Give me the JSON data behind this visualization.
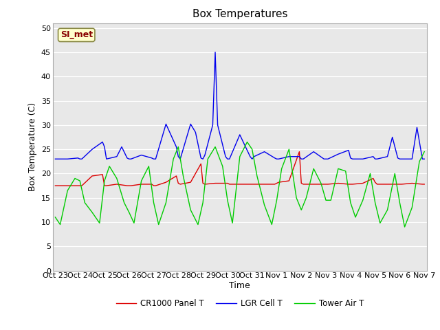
{
  "title": "Box Temperatures",
  "ylabel": "Box Temperature (C)",
  "xlabel": "Time",
  "ylim": [
    0,
    51
  ],
  "yticks": [
    0,
    5,
    10,
    15,
    20,
    25,
    30,
    35,
    40,
    45,
    50
  ],
  "bg_color": "#e8e8e8",
  "fig_bg": "#ffffff",
  "grid_color": "#ffffff",
  "annotation_text": "SI_met",
  "annotation_bg": "#ffffcc",
  "annotation_border": "#aaaaaa",
  "legend": [
    "CR1000 Panel T",
    "LGR Cell T",
    "Tower Air T"
  ],
  "line_colors": [
    "#dd0000",
    "#0000ee",
    "#00cc00"
  ],
  "line_width": 1.0,
  "x_tick_labels": [
    "Oct 23",
    "Oct 24",
    "Oct 25",
    "Oct 26",
    "Oct 27",
    "Oct 28",
    "Oct 29",
    "Oct 30",
    "Oct 31",
    "Nov 1",
    "Nov 2",
    "Nov 3",
    "Nov 4",
    "Nov 5",
    "Nov 6",
    "Nov 7"
  ],
  "x_tick_positions": [
    0,
    1,
    2,
    3,
    4,
    5,
    6,
    7,
    8,
    9,
    10,
    11,
    12,
    13,
    14,
    15
  ],
  "panel_t_x": [
    0.0,
    0.08,
    0.5,
    0.92,
    1.0,
    1.08,
    1.5,
    1.92,
    2.0,
    2.08,
    2.5,
    2.92,
    3.0,
    3.08,
    3.5,
    3.92,
    4.0,
    4.08,
    4.5,
    4.92,
    5.0,
    5.08,
    5.5,
    5.92,
    6.0,
    6.08,
    6.5,
    6.92,
    7.0,
    7.08,
    7.5,
    7.92,
    8.0,
    8.08,
    8.5,
    8.92,
    9.0,
    9.08,
    9.5,
    9.92,
    10.0,
    10.08,
    10.5,
    10.92,
    11.0,
    11.08,
    11.5,
    11.92,
    12.0,
    12.08,
    12.5,
    12.92,
    13.0,
    13.08,
    13.5,
    13.92,
    14.0,
    14.08,
    14.5,
    14.92,
    15.0
  ],
  "panel_t": [
    17.5,
    17.5,
    17.5,
    17.5,
    17.5,
    17.5,
    19.5,
    19.8,
    17.5,
    17.5,
    17.8,
    17.5,
    17.5,
    17.5,
    17.8,
    17.8,
    17.5,
    17.5,
    18.2,
    19.5,
    18.0,
    17.8,
    18.2,
    22.0,
    18.0,
    17.8,
    18.0,
    18.0,
    18.0,
    17.8,
    17.8,
    17.8,
    17.8,
    17.8,
    17.8,
    17.8,
    18.0,
    18.2,
    18.5,
    24.5,
    18.0,
    17.8,
    17.8,
    17.8,
    17.8,
    17.8,
    18.0,
    17.8,
    17.8,
    17.8,
    18.0,
    19.0,
    18.2,
    17.8,
    17.8,
    17.8,
    17.8,
    17.8,
    18.0,
    17.8,
    17.8
  ],
  "lgr_t_x": [
    0.0,
    0.08,
    0.5,
    0.92,
    1.0,
    1.08,
    1.5,
    1.92,
    2.0,
    2.08,
    2.5,
    2.7,
    2.92,
    3.0,
    3.08,
    3.5,
    3.92,
    4.0,
    4.08,
    4.5,
    4.92,
    5.0,
    5.08,
    5.5,
    5.7,
    5.92,
    6.0,
    6.08,
    6.4,
    6.5,
    6.6,
    6.92,
    7.0,
    7.08,
    7.5,
    7.92,
    8.0,
    8.08,
    8.5,
    8.92,
    9.0,
    9.08,
    9.5,
    9.92,
    10.0,
    10.08,
    10.5,
    10.92,
    11.0,
    11.08,
    11.5,
    11.92,
    12.0,
    12.08,
    12.5,
    12.92,
    13.0,
    13.08,
    13.5,
    13.7,
    13.92,
    14.0,
    14.08,
    14.5,
    14.7,
    14.92,
    15.0
  ],
  "lgr_t": [
    23.0,
    23.0,
    23.0,
    23.2,
    23.0,
    23.0,
    25.0,
    26.5,
    25.5,
    23.0,
    23.5,
    25.5,
    23.2,
    23.0,
    23.0,
    23.8,
    23.2,
    23.0,
    23.0,
    30.2,
    25.5,
    23.5,
    23.0,
    30.2,
    28.5,
    23.2,
    23.0,
    23.8,
    30.0,
    45.0,
    30.0,
    23.5,
    23.0,
    23.0,
    28.0,
    23.5,
    23.0,
    23.5,
    24.5,
    23.2,
    23.0,
    23.0,
    23.5,
    23.5,
    23.0,
    23.0,
    24.5,
    23.0,
    23.0,
    23.0,
    24.0,
    24.8,
    23.2,
    23.0,
    23.0,
    23.5,
    23.0,
    23.0,
    23.5,
    27.5,
    23.2,
    23.0,
    23.0,
    23.0,
    29.5,
    23.0,
    23.0
  ],
  "tower_t_x": [
    0.0,
    0.2,
    0.5,
    0.8,
    1.0,
    1.2,
    1.5,
    1.8,
    2.0,
    2.2,
    2.5,
    2.8,
    3.0,
    3.2,
    3.5,
    3.8,
    4.0,
    4.2,
    4.5,
    4.8,
    5.0,
    5.2,
    5.5,
    5.8,
    6.0,
    6.2,
    6.5,
    6.8,
    7.0,
    7.2,
    7.5,
    7.8,
    8.0,
    8.2,
    8.5,
    8.8,
    9.0,
    9.2,
    9.5,
    9.8,
    10.0,
    10.2,
    10.5,
    10.8,
    11.0,
    11.2,
    11.5,
    11.8,
    12.0,
    12.2,
    12.5,
    12.8,
    13.0,
    13.2,
    13.5,
    13.8,
    14.0,
    14.2,
    14.5,
    14.8,
    15.0
  ],
  "tower_t": [
    11.0,
    9.5,
    16.5,
    19.0,
    18.5,
    14.0,
    12.0,
    9.8,
    18.5,
    21.5,
    19.0,
    14.0,
    12.0,
    9.8,
    18.5,
    21.5,
    14.0,
    9.5,
    14.0,
    23.0,
    25.5,
    19.5,
    12.5,
    9.5,
    14.0,
    23.0,
    25.5,
    21.5,
    14.5,
    9.8,
    23.5,
    26.5,
    25.0,
    19.5,
    13.5,
    9.5,
    14.5,
    21.0,
    25.0,
    15.0,
    12.5,
    15.0,
    21.0,
    18.0,
    14.5,
    14.5,
    21.0,
    20.5,
    14.0,
    11.0,
    14.5,
    20.0,
    14.0,
    9.8,
    12.5,
    20.0,
    14.0,
    9.0,
    13.0,
    22.5,
    24.5
  ]
}
